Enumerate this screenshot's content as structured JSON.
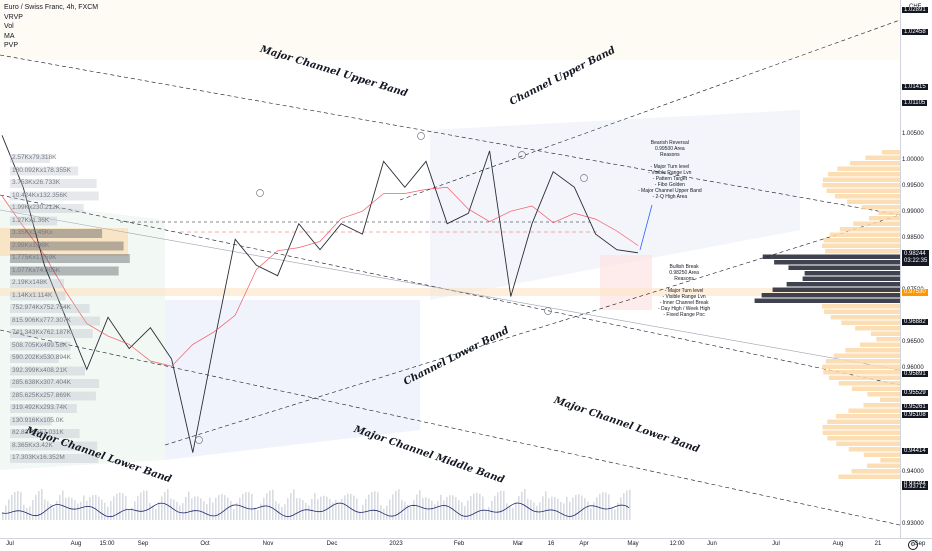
{
  "legend": {
    "symbol": "Euro / Swiss Franc, 4h, FXCM",
    "indicators": [
      "VRVP",
      "Vol",
      "MA",
      "PVP"
    ]
  },
  "currency": "CHF",
  "current_price": "0.98244",
  "countdown": "03:22:35",
  "highlight_price": "0.97530",
  "chart_data": {
    "type": "line",
    "title": "Euro / Swiss Franc, 4h, FXCM",
    "xlabel": "",
    "ylabel": "CHF",
    "ylim": [
      0.9272,
      1.031
    ],
    "x_ticks": [
      "Jul",
      "Aug",
      "15:00",
      "Sep",
      "Oct",
      "Nov",
      "Dec",
      "2023",
      "Feb",
      "Mar",
      "16",
      "Apr",
      "May",
      "12:00",
      "Jun",
      "Jul",
      "Aug",
      "21",
      "Sep"
    ],
    "y_ticks": [
      "1.02891",
      "1.02458",
      "1.01415",
      "1.01105",
      "1.00500",
      "1.00000",
      "0.99500",
      "0.99000",
      "0.98500",
      "0.98000",
      "0.97500",
      "0.96882",
      "0.96500",
      "0.96000",
      "0.95891",
      "0.95529",
      "0.95261",
      "0.95108",
      "0.94414",
      "0.94000",
      "0.93784",
      "0.93712",
      "0.93000"
    ],
    "price_series": {
      "name": "EURCHF",
      "points": [
        [
          "Jul",
          1.005
        ],
        [
          "Jul",
          0.995
        ],
        [
          "mid-Jul",
          0.98
        ],
        [
          "mid-Jul",
          0.97
        ],
        [
          "Aug",
          0.96
        ],
        [
          "Aug",
          0.97
        ],
        [
          "15:00",
          0.964
        ],
        [
          "Sep",
          0.968
        ],
        [
          "mid-Sep",
          0.962
        ],
        [
          "late-Sep",
          0.944
        ],
        [
          "Oct",
          0.965
        ],
        [
          "Oct",
          0.985
        ],
        [
          "mid-Oct",
          0.98
        ],
        [
          "Nov",
          0.978
        ],
        [
          "mid-Nov",
          0.988
        ],
        [
          "Dec",
          0.983
        ],
        [
          "mid-Dec",
          0.988
        ],
        [
          "2023",
          0.986
        ],
        [
          "Jan",
          1.0
        ],
        [
          "mid-Jan",
          0.995
        ],
        [
          "Feb",
          1.0
        ],
        [
          "mid-Feb",
          0.988
        ],
        [
          "Mar",
          0.99
        ],
        [
          "early-Mar",
          1.002
        ],
        [
          "mid-Mar",
          0.974
        ],
        [
          "16",
          0.988
        ],
        [
          "late-Mar",
          0.998
        ],
        [
          "Apr",
          0.995
        ],
        [
          "mid-Apr",
          0.986
        ],
        [
          "late-Apr",
          0.983
        ],
        [
          "May",
          0.9824
        ]
      ]
    },
    "annotations": [
      "Major Channel Upper Band",
      "Channel Upper Band",
      "Channel Lower Band",
      "Major Channel Lower Band",
      "Major Channel Lower Band",
      "Major Channel Middle Band"
    ],
    "bearish_note": [
      "Bearish Reversal",
      "0.99500 Area",
      "Reasons",
      "",
      "- Major Turn level",
      "- Visible Range Lvn",
      "- Pattern Target",
      "- Fibo Golden",
      "- Major Channel Upper Band",
      "- 2-Q High Area"
    ],
    "bullish_note": [
      "Bullish Break",
      "0.98250 Area",
      "Reasons",
      "",
      "- Major Turn level",
      "- Visible Range Lvn",
      "- Inner Channel Break",
      "- Day High / Week High",
      "- Fixed Range Poc"
    ],
    "volume_profile_labels": [
      "2.57Kx79.318K",
      "180.092Kx178.355K",
      "3.753Kx26.733K",
      "10.424Kx132.356K",
      "1.99Kx230.212K",
      "1.27Kx1.36K",
      "3.35Kx3.45Kx",
      "2.99Kx1.98K",
      "1.775Kx1.259K",
      "1.077Kx74.005K",
      "2.19Kx148K",
      "1.14Kx1.114K",
      "752.974Kx752.754K",
      "815.906Kx777.307K",
      "741.343Kx762.187K",
      "508.705Kx499.58K",
      "590.202Kx530.894K",
      "392.399Kx408.21K",
      "285.638Kx307.404K",
      "285.625Kx257.869K",
      "319.492Kx293.74K",
      "130.916Kx105.0K",
      "82.837Kx57.031K",
      "8.365Kx3.42K",
      "17.303Kx16.352M"
    ]
  }
}
